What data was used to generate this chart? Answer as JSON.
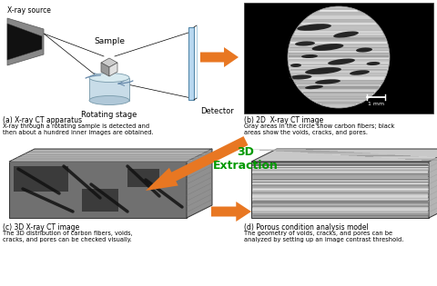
{
  "background_color": "#ffffff",
  "arrow_color": "#E87722",
  "label_a": "(a) X-ray CT apparatus",
  "label_b": "(b) 2D  X-ray CT image",
  "label_c": "(c) 3D X-ray CT image",
  "label_d": "(d) Porous condition analysis model",
  "desc_a": "X-ray through a rotating sample is detected and\nthen about a hundred inner images are obtained.",
  "desc_b": "Gray areas in the circle show carbon fibers; black\nareas show the voids, cracks, and pores.",
  "desc_c": "The 3D distribution of carbon fibers, voids,\ncracks, and pores can be checked visually.",
  "desc_d": "The geometry of voids, cracks, and pores can be\nanalyzed by setting up an image contrast threshold.",
  "xray_source_label": "X-ray source",
  "sample_label": "Sample",
  "detector_label": "Detector",
  "rotating_stage_label": "Rotating stage",
  "extraction_label": "3D\nExtraction",
  "extraction_color": "#009900",
  "label_fontsize": 5.5,
  "desc_fontsize": 4.8,
  "annotation_fontsize": 6.0
}
